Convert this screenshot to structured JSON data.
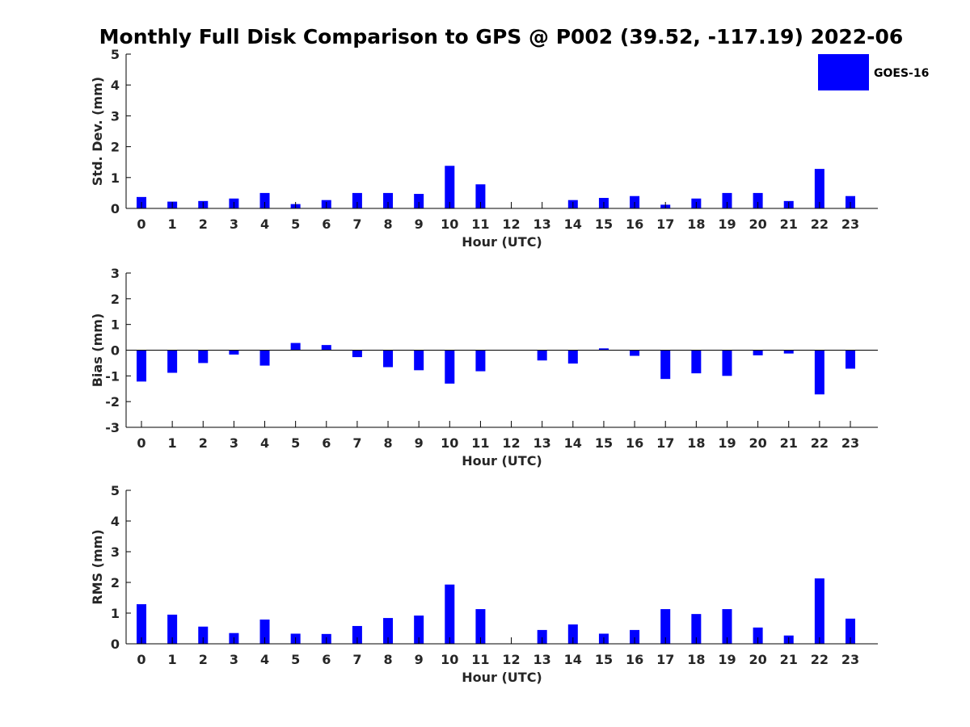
{
  "title": "Monthly Full Disk Comparison to GPS @ P002 (39.52, -117.19) 2022-06",
  "legend": {
    "label": "GOES-16",
    "color": "#0000ff",
    "placement": "top-right"
  },
  "chart_data": [
    {
      "type": "bar",
      "ylabel": "Std. Dev. (mm)",
      "xlabel": "Hour (UTC)",
      "ylim": [
        0,
        5
      ],
      "yticks": [
        "0",
        "1",
        "2",
        "3",
        "4",
        "5"
      ],
      "categories": [
        "0",
        "1",
        "2",
        "3",
        "4",
        "5",
        "6",
        "7",
        "8",
        "9",
        "10",
        "11",
        "12",
        "13",
        "14",
        "15",
        "16",
        "17",
        "18",
        "19",
        "20",
        "21",
        "22",
        "23"
      ],
      "series": [
        {
          "name": "GOES-16",
          "values": [
            0.37,
            0.22,
            0.24,
            0.32,
            0.5,
            0.14,
            0.27,
            0.5,
            0.5,
            0.47,
            1.38,
            0.78,
            0,
            0,
            0.27,
            0.34,
            0.4,
            0.12,
            0.32,
            0.5,
            0.5,
            0.24,
            1.28,
            0.4
          ]
        }
      ],
      "grid": false
    },
    {
      "type": "bar",
      "ylabel": "Bias (mm)",
      "xlabel": "Hour (UTC)",
      "ylim": [
        -3,
        3
      ],
      "yticks": [
        "-3",
        "-2",
        "-1",
        "0",
        "1",
        "2",
        "3"
      ],
      "categories": [
        "0",
        "1",
        "2",
        "3",
        "4",
        "5",
        "6",
        "7",
        "8",
        "9",
        "10",
        "11",
        "12",
        "13",
        "14",
        "15",
        "16",
        "17",
        "18",
        "19",
        "20",
        "21",
        "22",
        "23"
      ],
      "series": [
        {
          "name": "GOES-16",
          "values": [
            -1.22,
            -0.88,
            -0.5,
            -0.17,
            -0.6,
            0.28,
            0.2,
            -0.27,
            -0.66,
            -0.78,
            -1.3,
            -0.82,
            0,
            -0.4,
            -0.52,
            0.07,
            -0.22,
            -1.12,
            -0.9,
            -1.0,
            -0.2,
            -0.13,
            -1.72,
            -0.72
          ]
        }
      ],
      "grid": false
    },
    {
      "type": "bar",
      "ylabel": "RMS (mm)",
      "xlabel": "Hour (UTC)",
      "ylim": [
        0,
        5
      ],
      "yticks": [
        "0",
        "1",
        "2",
        "3",
        "4",
        "5"
      ],
      "categories": [
        "0",
        "1",
        "2",
        "3",
        "4",
        "5",
        "6",
        "7",
        "8",
        "9",
        "10",
        "11",
        "12",
        "13",
        "14",
        "15",
        "16",
        "17",
        "18",
        "19",
        "20",
        "21",
        "22",
        "23"
      ],
      "series": [
        {
          "name": "GOES-16",
          "values": [
            1.29,
            0.95,
            0.56,
            0.35,
            0.79,
            0.33,
            0.32,
            0.58,
            0.84,
            0.92,
            1.93,
            1.13,
            0,
            0.45,
            0.63,
            0.33,
            0.45,
            1.13,
            0.97,
            1.13,
            0.53,
            0.27,
            2.13,
            0.82
          ]
        }
      ],
      "grid": false
    }
  ]
}
